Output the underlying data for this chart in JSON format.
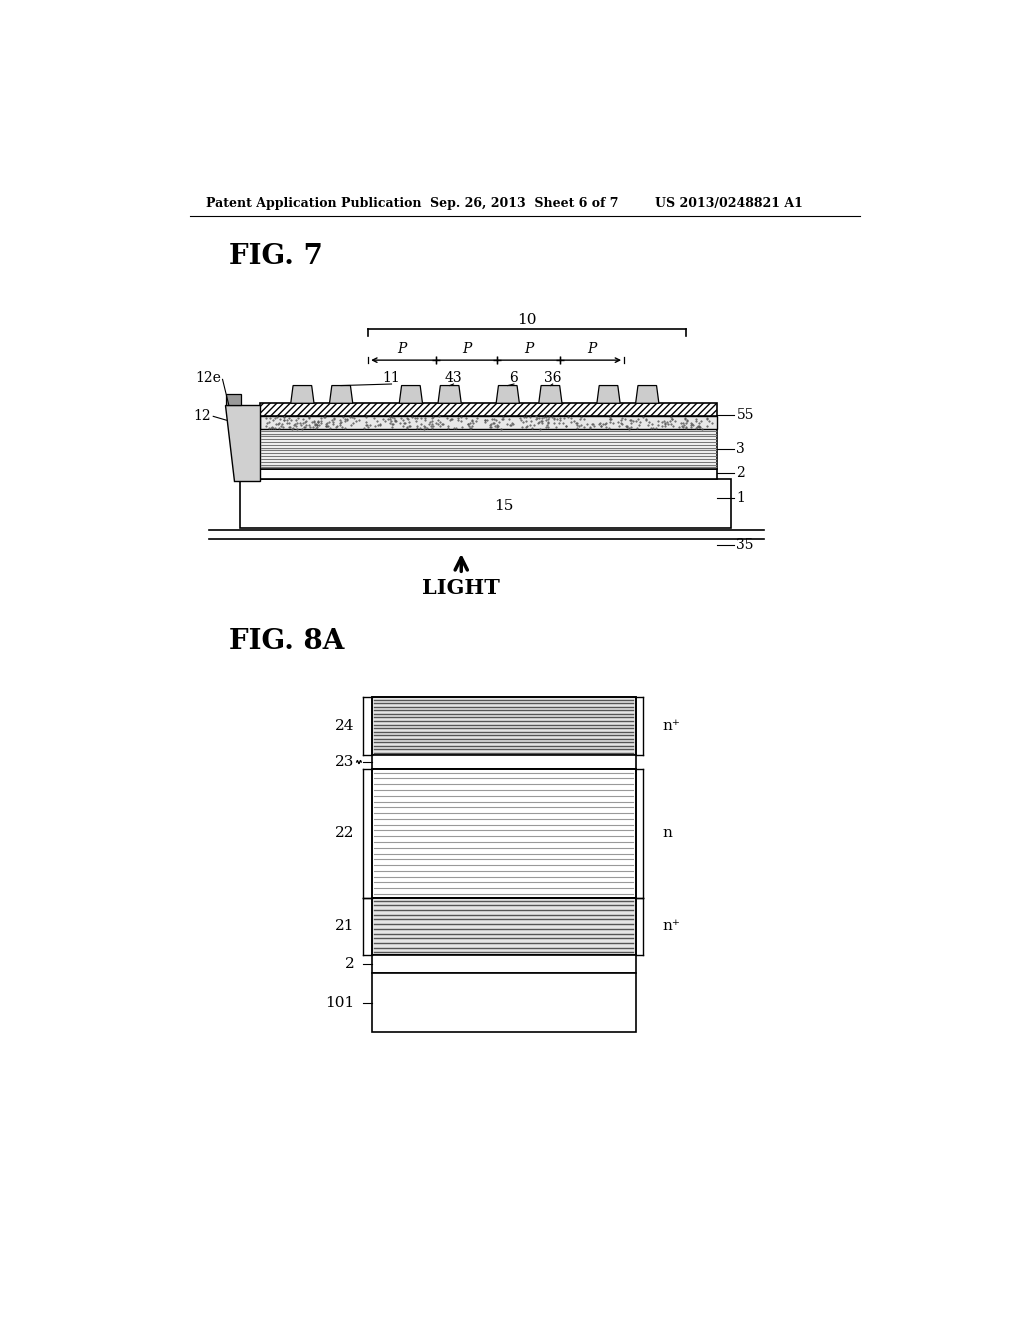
{
  "bg_color": "#ffffff",
  "header_left": "Patent Application Publication",
  "header_mid": "Sep. 26, 2013  Sheet 6 of 7",
  "header_right": "US 2013/0248821 A1",
  "fig7_label": "FIG. 7",
  "fig8a_label": "FIG. 8A",
  "light_label": "LIGHT",
  "fig7": {
    "label_10": "10",
    "label_11": "11",
    "label_43": "43",
    "label_6": "6",
    "label_36": "36",
    "label_12e": "12e",
    "label_12": "12",
    "label_55": "55",
    "label_3": "3",
    "label_2": "2",
    "label_1": "1",
    "label_15": "15",
    "label_35": "35"
  },
  "fig8a": {
    "label_24": "24",
    "label_23": "23",
    "label_22": "22",
    "label_21": "21",
    "label_2": "2",
    "label_101": "101",
    "label_nplus_top": "n⁺",
    "label_n_mid": "n",
    "label_nplus_bot": "n⁺"
  }
}
